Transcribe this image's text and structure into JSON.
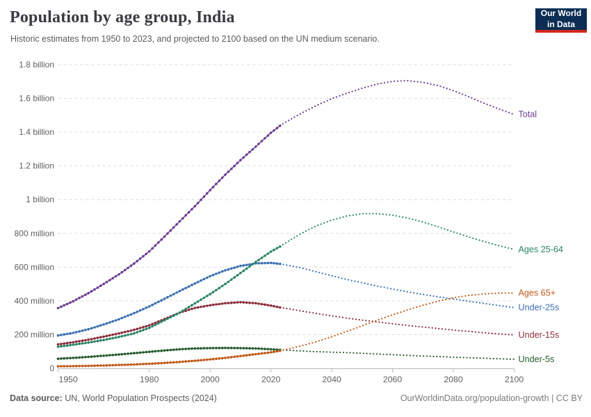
{
  "header": {
    "title": "Population by age group, India",
    "subtitle": "Historic estimates from 1950 to 2023, and projected to 2100 based on the UN medium scenario.",
    "logo": {
      "line1": "Our World",
      "line2": "in Data"
    }
  },
  "footer": {
    "source_label": "Data source:",
    "source_text": " UN, World Population Prospects (2024)",
    "link_text": "OurWorldinData.org/population-growth | CC BY"
  },
  "chart_data": {
    "type": "line",
    "title": "Population by age group, India",
    "xlabel": "",
    "ylabel": "",
    "unit": "millions of people",
    "x_range": [
      1950,
      2100
    ],
    "ylim": [
      0,
      1800
    ],
    "grid": true,
    "legend_position": "right-edge-labels",
    "projection_start_year": 2023,
    "x_ticks": [
      1950,
      1980,
      2000,
      2020,
      2040,
      2060,
      2080,
      2100
    ],
    "y_ticks": [
      {
        "value": 0,
        "label": "0"
      },
      {
        "value": 200,
        "label": "200 million"
      },
      {
        "value": 400,
        "label": "400 million"
      },
      {
        "value": 600,
        "label": "600 million"
      },
      {
        "value": 800,
        "label": "800 million"
      },
      {
        "value": 1000,
        "label": "1 billion"
      },
      {
        "value": 1200,
        "label": "1.2 billion"
      },
      {
        "value": 1400,
        "label": "1.4 billion"
      },
      {
        "value": 1600,
        "label": "1.6 billion"
      },
      {
        "value": 1800,
        "label": "1.8 billion"
      }
    ],
    "years": [
      1950,
      1955,
      1960,
      1965,
      1970,
      1975,
      1980,
      1985,
      1990,
      1995,
      2000,
      2005,
      2010,
      2015,
      2020,
      2023,
      2025,
      2030,
      2035,
      2040,
      2045,
      2050,
      2055,
      2060,
      2065,
      2070,
      2075,
      2080,
      2085,
      2090,
      2095,
      2100
    ],
    "series": [
      {
        "name": "Total",
        "color": "#6d3e91",
        "values": [
          357,
          398,
          446,
          500,
          557,
          621,
          693,
          781,
          871,
          961,
          1056,
          1148,
          1234,
          1314,
          1396,
          1438,
          1461,
          1512,
          1558,
          1598,
          1631,
          1660,
          1685,
          1701,
          1705,
          1695,
          1676,
          1646,
          1610,
          1572,
          1537,
          1505
        ]
      },
      {
        "name": "Ages 25-64",
        "color": "#2c8465",
        "values": [
          128,
          140,
          153,
          168,
          186,
          207,
          240,
          285,
          330,
          385,
          440,
          500,
          565,
          630,
          692,
          722,
          745,
          800,
          845,
          878,
          903,
          916,
          917,
          908,
          891,
          867,
          839,
          809,
          779,
          752,
          727,
          705
        ]
      },
      {
        "name": "Ages 65+",
        "color": "#c05917",
        "values": [
          12,
          13,
          15,
          17,
          20,
          23,
          27,
          32,
          38,
          45,
          53,
          62,
          73,
          84,
          95,
          104,
          112,
          133,
          158,
          187,
          219,
          252,
          285,
          317,
          347,
          374,
          398,
          418,
          432,
          441,
          446,
          446
        ]
      },
      {
        "name": "Under-25s",
        "color": "#3c6fb1",
        "values": [
          195,
          210,
          232,
          260,
          291,
          327,
          367,
          412,
          458,
          503,
          546,
          581,
          607,
          622,
          625,
          619,
          613,
          595,
          572,
          549,
          527,
          507,
          488,
          470,
          453,
          438,
          424,
          411,
          398,
          385,
          372,
          360
        ]
      },
      {
        "name": "Under-15s",
        "color": "#8b2e3c",
        "values": [
          142,
          155,
          170,
          188,
          207,
          228,
          255,
          292,
          330,
          358,
          374,
          386,
          392,
          386,
          372,
          361,
          355,
          340,
          325,
          311,
          298,
          286,
          275,
          264,
          254,
          245,
          236,
          227,
          219,
          211,
          204,
          198
        ]
      },
      {
        "name": "Under-5s",
        "color": "#265c2e",
        "values": [
          57,
          62,
          68,
          75,
          82,
          90,
          98,
          106,
          113,
          118,
          120,
          121,
          120,
          118,
          113,
          110,
          108,
          103,
          99,
          96,
          93,
          89,
          85,
          81,
          77,
          73,
          70,
          66,
          63,
          60,
          57,
          54
        ]
      }
    ]
  }
}
